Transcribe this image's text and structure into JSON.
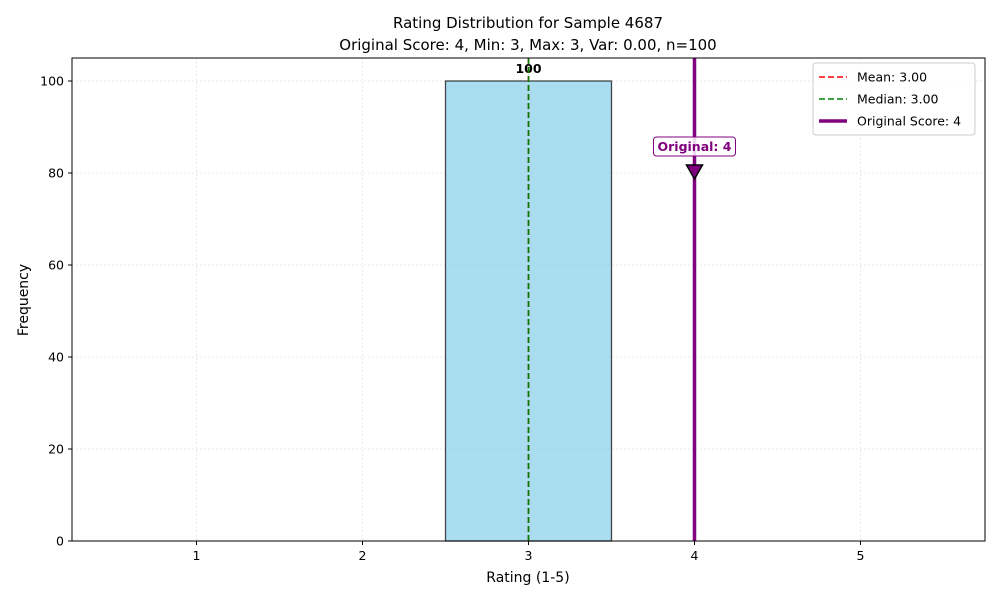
{
  "chart_data": {
    "type": "bar",
    "title": "Rating Distribution for Sample 4687",
    "subtitle": "Original Score: 4, Min: 3, Max: 3, Var: 0.00, n=100",
    "xlabel": "Rating (1-5)",
    "ylabel": "Frequency",
    "categories": [
      "1",
      "2",
      "3",
      "4",
      "5"
    ],
    "x": [
      1,
      2,
      3,
      4,
      5
    ],
    "values": [
      0,
      0,
      100,
      0,
      0
    ],
    "bar_labels": [
      "",
      "",
      "100",
      "",
      ""
    ],
    "xlim": [
      0.25,
      5.75
    ],
    "ylim": [
      0,
      105
    ],
    "xticks": [
      "1",
      "2",
      "3",
      "4",
      "5"
    ],
    "yticks": [
      "0",
      "20",
      "40",
      "60",
      "80",
      "100"
    ],
    "ytick_values": [
      0,
      20,
      40,
      60,
      80,
      100
    ],
    "grid": true,
    "legend_position": "top-right",
    "bar_color": "#87CEEB",
    "bar_edge_color": "#000000",
    "reference_lines": [
      {
        "name": "Mean: 3.00",
        "x": 3.0,
        "color": "#ff0000",
        "style": "dashed"
      },
      {
        "name": "Median: 3.00",
        "x": 3.0,
        "color": "#008000",
        "style": "dashed"
      },
      {
        "name": "Original Score: 4",
        "x": 4,
        "color": "#800080",
        "style": "solid"
      }
    ],
    "annotation": {
      "text": "Original: 4",
      "x": 4,
      "y": 80,
      "color": "#800080"
    }
  }
}
